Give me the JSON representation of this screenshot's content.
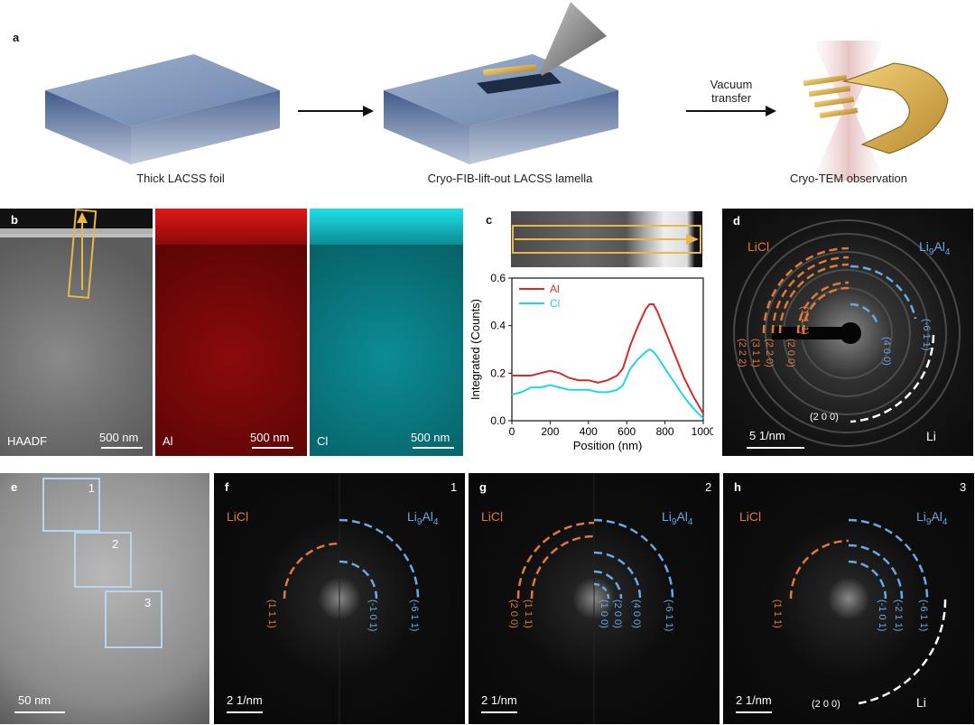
{
  "panel_labels": {
    "a": "a",
    "b": "b",
    "c": "c",
    "d": "d",
    "e": "e",
    "f": "f",
    "g": "g",
    "h": "h"
  },
  "panel_a": {
    "caption_1": "Thick LACSS foil",
    "caption_2": "Cryo-FIB-lift-out LACSS lamella",
    "caption_3": "Cryo-TEM observation",
    "arrow_label_line1": "Vacuum",
    "arrow_label_line2": "transfer"
  },
  "panel_b": {
    "haadf_label": "HAADF",
    "al_label": "Al",
    "cl_label": "Cl",
    "scale_1": "500 nm",
    "scale_2": "500 nm",
    "scale_3": "500 nm"
  },
  "colors": {
    "orange": "#e07a3a",
    "blue": "#6aa8e6",
    "al_red": "#d42a2a",
    "cl_cyan": "#21d6e0",
    "box_yellow": "#e8b84a"
  },
  "chart_data": {
    "type": "line",
    "xlabel": "Position (nm)",
    "ylabel": "Integrated (Counts)",
    "xlim": [
      0,
      1000
    ],
    "ylim": [
      0,
      0.6
    ],
    "xticks": [
      "0",
      "200",
      "400",
      "600",
      "800",
      "1000"
    ],
    "yticks": [
      "0.0",
      "0.2",
      "0.4",
      "0.6"
    ],
    "legend_position": "top-left",
    "series": [
      {
        "name": "Al",
        "color": "#d42a2a",
        "x": [
          0,
          50,
          100,
          150,
          200,
          250,
          300,
          350,
          400,
          450,
          500,
          550,
          580,
          620,
          660,
          700,
          720,
          740,
          760,
          800,
          850,
          900,
          950,
          1000
        ],
        "y": [
          0.19,
          0.19,
          0.19,
          0.2,
          0.21,
          0.2,
          0.18,
          0.17,
          0.17,
          0.16,
          0.17,
          0.19,
          0.22,
          0.32,
          0.4,
          0.47,
          0.49,
          0.49,
          0.46,
          0.38,
          0.28,
          0.18,
          0.1,
          0.03
        ]
      },
      {
        "name": "Cl",
        "color": "#21d6e0",
        "x": [
          0,
          50,
          100,
          150,
          200,
          250,
          300,
          350,
          400,
          450,
          500,
          550,
          580,
          620,
          660,
          700,
          720,
          740,
          760,
          800,
          850,
          900,
          950,
          1000
        ],
        "y": [
          0.11,
          0.12,
          0.14,
          0.14,
          0.15,
          0.14,
          0.13,
          0.13,
          0.13,
          0.12,
          0.12,
          0.13,
          0.15,
          0.22,
          0.26,
          0.29,
          0.3,
          0.29,
          0.27,
          0.22,
          0.16,
          0.1,
          0.05,
          0.01
        ]
      }
    ]
  },
  "panel_d": {
    "licl": "LiCl",
    "li9al4_main": "Li",
    "li9al4_sub": "9",
    "li9al4_mid": "Al",
    "li9al4_sub2": "4",
    "li": "Li",
    "li_index": "(2 0 0)",
    "licl_indices": [
      "(2 2 2)",
      "(3 1 1)",
      "(2 2 0)",
      "(2 0 0)",
      "(1 1 1)"
    ],
    "li9al4_indices": [
      "(4 0 0)",
      "(-6 1 1)"
    ],
    "scale": "5 1/nm"
  },
  "panel_e": {
    "scale": "50 nm",
    "box1": "1",
    "box2": "2",
    "box3": "3"
  },
  "panel_f": {
    "corner": "1",
    "licl": "LiCl",
    "li9al4": "Li",
    "sub9": "9",
    "al": "Al",
    "sub4": "4",
    "licl_indices": [
      "(1 1 1)"
    ],
    "li9al4_indices": [
      "(-1 0 1)",
      "(-6 1 1)"
    ],
    "scale": "2 1/nm"
  },
  "panel_g": {
    "corner": "2",
    "licl": "LiCl",
    "li9al4": "Li",
    "sub9": "9",
    "al": "Al",
    "sub4": "4",
    "licl_indices": [
      "(2 0 0)",
      "(1 1 1)"
    ],
    "li9al4_indices": [
      "(1 0 0)",
      "(2 0 0)",
      "(4 0 0)",
      "(-6 1 1)"
    ],
    "scale": "2 1/nm"
  },
  "panel_h": {
    "corner": "3",
    "licl": "LiCl",
    "li9al4": "Li",
    "sub9": "9",
    "al": "Al",
    "sub4": "4",
    "licl_indices": [
      "(1 1 1)"
    ],
    "li9al4_indices": [
      "(-1 0 1)",
      "(-2 1 1)",
      "(-6 1 1)"
    ],
    "li": "Li",
    "li_index": "(2 0 0)",
    "scale": "2 1/nm"
  }
}
